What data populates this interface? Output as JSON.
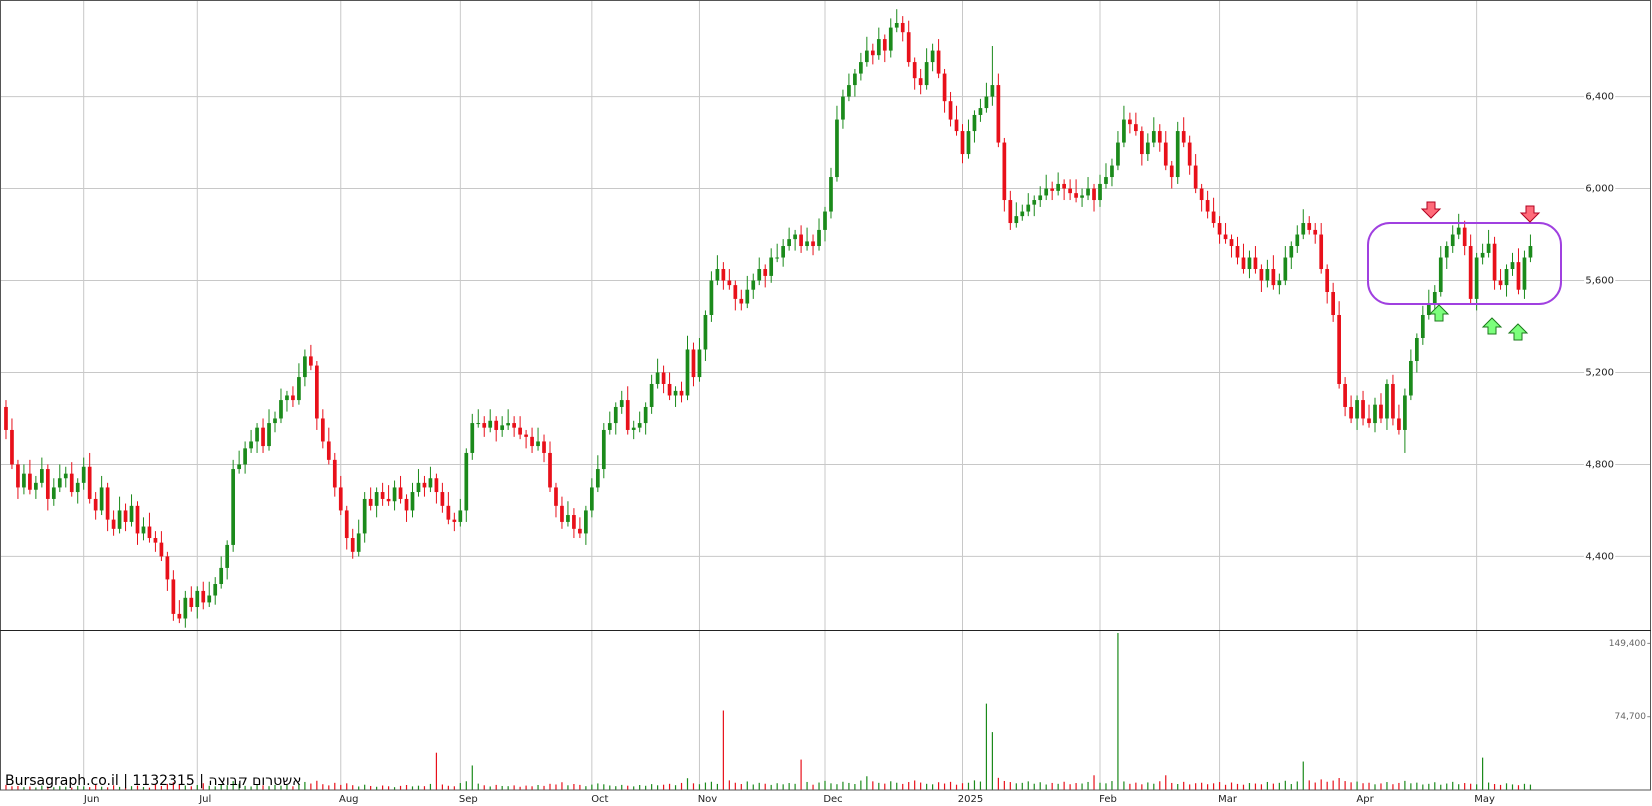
{
  "chart_data": {
    "type": "candlestick",
    "watermark": "Bursagraph.co.il | 1132315 | אשטרום קבוצה",
    "xlim": [
      -1,
      275
    ],
    "xticks": [
      {
        "value": 13,
        "label": "Jun"
      },
      {
        "value": 32,
        "label": "Jul"
      },
      {
        "value": 56,
        "label": "Aug"
      },
      {
        "value": 76,
        "label": "Sep"
      },
      {
        "value": 98,
        "label": "Oct"
      },
      {
        "value": 116,
        "label": "Nov"
      },
      {
        "value": 137,
        "label": "Dec"
      },
      {
        "value": 160,
        "label": "2025"
      },
      {
        "value": 183,
        "label": "Feb"
      },
      {
        "value": 203,
        "label": "Mar"
      },
      {
        "value": 226,
        "label": "Apr"
      },
      {
        "value": 246,
        "label": "May"
      }
    ],
    "ylim": [
      4080,
      6820
    ],
    "yticks": [
      {
        "value": 4400,
        "label": "4,400"
      },
      {
        "value": 4800,
        "label": "4,800"
      },
      {
        "value": 5200,
        "label": "5,200"
      },
      {
        "value": 5600,
        "label": "5,600"
      },
      {
        "value": 6000,
        "label": "6,000"
      },
      {
        "value": 6400,
        "label": "6,400"
      }
    ],
    "grid": true,
    "up_color": "#1b8a1b",
    "down_color": "#e8101a",
    "open": [
      5050,
      4950,
      4800,
      4700,
      4760,
      4690,
      4720,
      4780,
      4650,
      4700,
      4740,
      4760,
      4680,
      4720,
      4790,
      4650,
      4600,
      4700,
      4560,
      4520,
      4600,
      4550,
      4620,
      4500,
      4530,
      4480,
      4460,
      4400,
      4300,
      4150,
      4130,
      4220,
      4180,
      4250,
      4200,
      4230,
      4280,
      4350,
      4450,
      4780,
      4800,
      4870,
      4900,
      4960,
      4880,
      4980,
      5000,
      5080,
      5100,
      5080,
      5180,
      5270,
      5230,
      5000,
      4900,
      4820,
      4700,
      4600,
      4480,
      4420,
      4500,
      4650,
      4620,
      4680,
      4650,
      4640,
      4700,
      4650,
      4600,
      4680,
      4720,
      4700,
      4740,
      4680,
      4620,
      4560,
      4550,
      4600,
      4850,
      4980,
      4980,
      4960,
      4990,
      4950,
      4970,
      4980,
      4960,
      4930,
      4920,
      4880,
      4900,
      4850,
      4700,
      4620,
      4550,
      4580,
      4520,
      4500,
      4600,
      4700,
      4780,
      4950,
      4980,
      5050,
      5080,
      4950,
      4960,
      4980,
      5050,
      5150,
      5200,
      5150,
      5100,
      5120,
      5100,
      5300,
      5180,
      5300,
      5450,
      5600,
      5650,
      5600,
      5580,
      5520,
      5500,
      5560,
      5600,
      5650,
      5620,
      5700,
      5700,
      5750,
      5780,
      5800,
      5750,
      5770,
      5750,
      5820,
      5900,
      6050,
      6300,
      6400,
      6450,
      6500,
      6550,
      6600,
      6580,
      6650,
      6600,
      6700,
      6720,
      6680,
      6550,
      6480,
      6450,
      6550,
      6600,
      6500,
      6380,
      6300,
      6250,
      6150,
      6250,
      6320,
      6350,
      6400,
      6450,
      6200,
      5950,
      5850,
      5880,
      5900,
      5930,
      5950,
      5970,
      6000,
      5990,
      6020,
      6000,
      5980,
      5960,
      5970,
      6000,
      5950,
      6020,
      6050,
      6100,
      6200,
      6300,
      6280,
      6250,
      6150,
      6200,
      6250,
      6200,
      6100,
      6050,
      6250,
      6200,
      6100,
      6000,
      5950,
      5900,
      5850,
      5800,
      5780,
      5750,
      5700,
      5650,
      5700,
      5650,
      5600,
      5650,
      5580,
      5600,
      5700,
      5750,
      5800,
      5850,
      5820,
      5800,
      5650,
      5550,
      5450,
      5150,
      5050,
      5000,
      5080,
      5000,
      4980,
      5060,
      5000,
      5150,
      5000,
      4950,
      5100,
      5250,
      5350,
      5450,
      5500,
      5550,
      5700,
      5750,
      5800,
      5830,
      5750,
      5520,
      5700,
      5720,
      5760,
      5600,
      5580,
      5650,
      5680,
      5560,
      5700
    ],
    "high": [
      5080,
      5000,
      4820,
      4800,
      4820,
      4750,
      4830,
      4800,
      4740,
      4800,
      4790,
      4810,
      4740,
      4830,
      4850,
      4680,
      4750,
      4720,
      4600,
      4660,
      4630,
      4670,
      4640,
      4570,
      4590,
      4510,
      4510,
      4420,
      4340,
      4210,
      4250,
      4270,
      4270,
      4290,
      4290,
      4310,
      4400,
      4470,
      4820,
      4860,
      4900,
      4950,
      4980,
      5000,
      5040,
      5030,
      5130,
      5120,
      5140,
      5240,
      5300,
      5320,
      5250,
      5040,
      4960,
      4850,
      4750,
      4620,
      4520,
      4560,
      4680,
      4700,
      4700,
      4720,
      4710,
      4730,
      4750,
      4670,
      4720,
      4780,
      4750,
      4790,
      4760,
      4720,
      4680,
      4590,
      4650,
      4870,
      5020,
      5040,
      5010,
      5040,
      5010,
      5010,
      5040,
      5010,
      5010,
      4950,
      4960,
      4960,
      4930,
      4900,
      4720,
      4660,
      4640,
      4610,
      4570,
      4620,
      4740,
      4840,
      4980,
      5030,
      5070,
      5120,
      5140,
      4990,
      5030,
      5070,
      5190,
      5260,
      5230,
      5200,
      5140,
      5160,
      5360,
      5330,
      5350,
      5470,
      5640,
      5710,
      5680,
      5650,
      5600,
      5560,
      5620,
      5630,
      5700,
      5670,
      5740,
      5760,
      5780,
      5830,
      5820,
      5840,
      5830,
      5800,
      5870,
      5920,
      6090,
      6360,
      6430,
      6500,
      6520,
      6590,
      6660,
      6630,
      6700,
      6670,
      6740,
      6780,
      6750,
      6730,
      6570,
      6520,
      6610,
      6630,
      6650,
      6520,
      6420,
      6360,
      6280,
      6300,
      6340,
      6390,
      6460,
      6620,
      6500,
      6220,
      5990,
      5940,
      5930,
      5980,
      5970,
      6010,
      6060,
      6030,
      6070,
      6040,
      6040,
      6040,
      6000,
      6050,
      6020,
      6060,
      6110,
      6130,
      6250,
      6360,
      6330,
      6330,
      6270,
      6240,
      6310,
      6280,
      6250,
      6120,
      6290,
      6310,
      6230,
      6150,
      6020,
      5990,
      5960,
      5880,
      5850,
      5800,
      5790,
      5760,
      5730,
      5750,
      5670,
      5690,
      5710,
      5630,
      5750,
      5770,
      5840,
      5910,
      5880,
      5850,
      5850,
      5670,
      5590,
      5510,
      5180,
      5100,
      5100,
      5120,
      5060,
      5090,
      5110,
      5170,
      5190,
      5060,
      5130,
      5300,
      5370,
      5490,
      5560,
      5580,
      5750,
      5770,
      5840,
      5890,
      5860,
      5800,
      5720,
      5760,
      5820,
      5790,
      5650,
      5670,
      5720,
      5740,
      5730,
      5800
    ],
    "low": [
      4910,
      4780,
      4650,
      4670,
      4670,
      4650,
      4700,
      4600,
      4620,
      4680,
      4700,
      4660,
      4630,
      4690,
      4630,
      4560,
      4580,
      4510,
      4490,
      4500,
      4510,
      4530,
      4450,
      4470,
      4460,
      4420,
      4380,
      4250,
      4120,
      4110,
      4090,
      4160,
      4130,
      4170,
      4180,
      4190,
      4260,
      4300,
      4420,
      4760,
      4760,
      4850,
      4850,
      4850,
      4860,
      4940,
      4980,
      5030,
      5050,
      5060,
      5140,
      5210,
      4950,
      4870,
      4800,
      4660,
      4580,
      4430,
      4390,
      4400,
      4460,
      4600,
      4570,
      4620,
      4620,
      4600,
      4630,
      4550,
      4570,
      4660,
      4660,
      4680,
      4630,
      4590,
      4540,
      4510,
      4530,
      4550,
      4820,
      4960,
      4920,
      4940,
      4900,
      4920,
      4950,
      4920,
      4910,
      4870,
      4850,
      4860,
      4810,
      4680,
      4570,
      4520,
      4530,
      4480,
      4480,
      4450,
      4570,
      4680,
      4740,
      4930,
      4930,
      5020,
      4930,
      4910,
      4940,
      4930,
      5020,
      5130,
      5110,
      5080,
      5050,
      5070,
      5080,
      5140,
      5160,
      5250,
      5420,
      5580,
      5560,
      5560,
      5470,
      5470,
      5480,
      5520,
      5580,
      5570,
      5590,
      5680,
      5660,
      5730,
      5730,
      5720,
      5730,
      5710,
      5730,
      5770,
      5870,
      6030,
      6260,
      6380,
      6400,
      6470,
      6530,
      6540,
      6560,
      6550,
      6570,
      6680,
      6640,
      6530,
      6430,
      6410,
      6430,
      6510,
      6480,
      6330,
      6270,
      6230,
      6110,
      6130,
      6200,
      6290,
      6330,
      6360,
      6180,
      5900,
      5820,
      5830,
      5860,
      5880,
      5880,
      5920,
      5950,
      5950,
      5970,
      5950,
      5950,
      5940,
      5920,
      5950,
      5900,
      5920,
      6000,
      6010,
      6080,
      6180,
      6240,
      6230,
      6100,
      6120,
      6180,
      6160,
      6080,
      6000,
      6020,
      6180,
      6060,
      5980,
      5900,
      5870,
      5830,
      5760,
      5760,
      5700,
      5670,
      5630,
      5610,
      5630,
      5550,
      5570,
      5560,
      5540,
      5580,
      5650,
      5720,
      5780,
      5800,
      5760,
      5630,
      5500,
      5420,
      5130,
      5010,
      4980,
      4950,
      4970,
      4960,
      4940,
      4980,
      4950,
      4970,
      4930,
      4850,
      5080,
      5200,
      5320,
      5430,
      5460,
      5530,
      5650,
      5720,
      5780,
      5710,
      5500,
      5470,
      5670,
      5700,
      5560,
      5560,
      5530,
      5620,
      5540,
      5520,
      5680
    ],
    "close": [
      4950,
      4800,
      4700,
      4760,
      4690,
      4720,
      4780,
      4650,
      4700,
      4740,
      4760,
      4680,
      4720,
      4790,
      4650,
      4600,
      4700,
      4560,
      4520,
      4600,
      4550,
      4620,
      4500,
      4530,
      4480,
      4460,
      4400,
      4300,
      4150,
      4130,
      4220,
      4180,
      4250,
      4200,
      4230,
      4280,
      4350,
      4450,
      4780,
      4800,
      4870,
      4900,
      4960,
      4880,
      4980,
      5000,
      5080,
      5100,
      5080,
      5180,
      5270,
      5230,
      5000,
      4900,
      4820,
      4700,
      4600,
      4480,
      4420,
      4500,
      4650,
      4620,
      4680,
      4650,
      4640,
      4700,
      4650,
      4600,
      4680,
      4720,
      4700,
      4740,
      4680,
      4620,
      4560,
      4550,
      4600,
      4850,
      4980,
      4980,
      4960,
      4990,
      4950,
      4970,
      4980,
      4960,
      4930,
      4920,
      4880,
      4900,
      4850,
      4700,
      4620,
      4550,
      4580,
      4520,
      4500,
      4600,
      4700,
      4780,
      4950,
      4980,
      5050,
      5080,
      4950,
      4960,
      4980,
      5050,
      5150,
      5200,
      5150,
      5100,
      5120,
      5100,
      5300,
      5180,
      5300,
      5450,
      5600,
      5650,
      5600,
      5580,
      5520,
      5500,
      5560,
      5600,
      5650,
      5620,
      5700,
      5700,
      5750,
      5780,
      5800,
      5750,
      5770,
      5750,
      5820,
      5900,
      6050,
      6300,
      6400,
      6450,
      6500,
      6550,
      6600,
      6580,
      6650,
      6600,
      6700,
      6720,
      6680,
      6550,
      6480,
      6450,
      6550,
      6600,
      6500,
      6380,
      6300,
      6250,
      6150,
      6250,
      6320,
      6350,
      6400,
      6450,
      6200,
      5950,
      5850,
      5880,
      5900,
      5930,
      5950,
      5970,
      6000,
      5990,
      6020,
      6000,
      5980,
      5960,
      5970,
      6000,
      5950,
      6020,
      6050,
      6100,
      6200,
      6300,
      6280,
      6250,
      6150,
      6200,
      6250,
      6200,
      6100,
      6050,
      6250,
      6200,
      6100,
      6000,
      5950,
      5900,
      5850,
      5800,
      5780,
      5750,
      5700,
      5650,
      5700,
      5650,
      5600,
      5650,
      5580,
      5600,
      5700,
      5750,
      5800,
      5850,
      5820,
      5800,
      5650,
      5550,
      5450,
      5150,
      5050,
      5000,
      5080,
      5000,
      4980,
      5060,
      5000,
      5150,
      5000,
      4950,
      5100,
      5250,
      5350,
      5450,
      5500,
      5550,
      5700,
      5750,
      5800,
      5830,
      5750,
      5520,
      5700,
      5720,
      5760,
      5600,
      5580,
      5650,
      5680,
      5560,
      5700,
      5750
    ],
    "volume": {
      "ylim": [
        0,
        161000
      ],
      "yticks": [
        {
          "value": 74700,
          "label": "74,700"
        },
        {
          "value": 149400,
          "label": "149,400"
        }
      ],
      "values": [
        5200,
        3800,
        4100,
        2900,
        3500,
        2600,
        4400,
        3100,
        2800,
        3900,
        3300,
        2500,
        4200,
        3600,
        2900,
        5100,
        3400,
        2700,
        4800,
        3200,
        2600,
        3900,
        4500,
        3000,
        2400,
        5600,
        4100,
        6200,
        7800,
        5300,
        4600,
        3800,
        5100,
        6900,
        4300,
        3700,
        5800,
        4900,
        9100,
        6400,
        4200,
        3600,
        5300,
        4800,
        3900,
        5200,
        4400,
        6100,
        3800,
        5700,
        8200,
        6600,
        9400,
        5900,
        4700,
        7300,
        5200,
        6800,
        4900,
        3600,
        5400,
        4100,
        3300,
        4600,
        3800,
        2900,
        4200,
        5100,
        3700,
        4400,
        3900,
        6200,
        38000,
        5600,
        4300,
        3800,
        7100,
        8900,
        25000,
        6500,
        4800,
        3600,
        5200,
        4100,
        3900,
        4700,
        3300,
        4500,
        3800,
        5100,
        4200,
        6300,
        5600,
        7900,
        4800,
        6100,
        5200,
        3900,
        5500,
        6700,
        5800,
        4600,
        3900,
        5200,
        4400,
        3700,
        5100,
        4300,
        6000,
        4800,
        5400,
        6300,
        4900,
        7200,
        12000,
        6800,
        5900,
        7600,
        8400,
        6200,
        81000,
        9800,
        7400,
        6100,
        8700,
        5600,
        7300,
        6400,
        5200,
        6900,
        5800,
        7100,
        6300,
        31000,
        8200,
        5400,
        7600,
        9300,
        6800,
        5900,
        8400,
        7200,
        6100,
        9600,
        14000,
        8800,
        7300,
        6500,
        8900,
        7400,
        6200,
        8100,
        9700,
        7600,
        6300,
        5800,
        7900,
        6600,
        8300,
        5400,
        6900,
        7400,
        9800,
        8600,
        88000,
        59000,
        12400,
        9200,
        8100,
        6800,
        7300,
        8800,
        6400,
        7900,
        5600,
        7200,
        6300,
        8400,
        5900,
        7100,
        6600,
        8200,
        15000,
        7400,
        6800,
        9100,
        160000,
        8700,
        6300,
        7500,
        5800,
        7700,
        6400,
        8900,
        15000,
        7200,
        6100,
        8300,
        5700,
        6900,
        7400,
        5900,
        6800,
        8100,
        5300,
        7600,
        6200,
        5400,
        7100,
        6600,
        5800,
        8200,
        6500,
        7300,
        9400,
        6100,
        8700,
        29000,
        9800,
        7600,
        10800,
        8400,
        9600,
        12200,
        9100,
        7800,
        8600,
        6900,
        7400,
        5800,
        6700,
        8100,
        5900,
        7200,
        9300,
        6800,
        7500,
        5600,
        6300,
        7900,
        5400,
        6600,
        8300,
        5900,
        7100,
        6400,
        5800,
        33000,
        7600,
        6100,
        5200,
        6800,
        5700,
        4900,
        6300,
        5500
      ]
    }
  }
}
